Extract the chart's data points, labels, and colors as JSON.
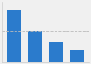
{
  "values": [
    100,
    60,
    38,
    22
  ],
  "bar_color": "#2b7bcc",
  "background_color": "#f0f0f0",
  "ylim": [
    0,
    115
  ],
  "dashed_line_y": 60,
  "bar_width": 0.65,
  "figsize": [
    1.0,
    0.71
  ],
  "dpi": 100,
  "spine_color": "#cccccc",
  "dash_color": "#bbbbbb"
}
